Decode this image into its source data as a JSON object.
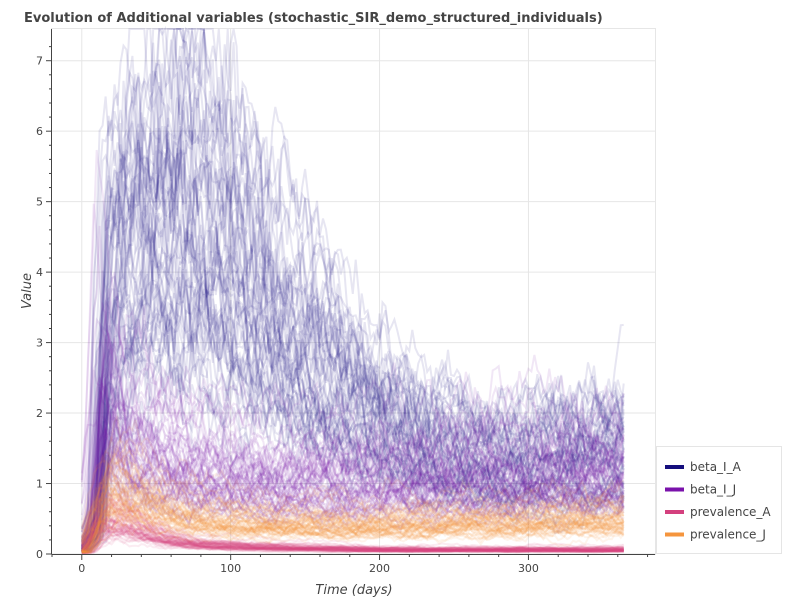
{
  "chart_data": {
    "type": "line",
    "title": "Evolution of Additional variables (stochastic_SIR_demo_structured_individuals)",
    "xlabel": "Time (days)",
    "ylabel": "Value",
    "xlim": [
      -20,
      385
    ],
    "ylim": [
      0,
      7.45
    ],
    "x_ticks": [
      0,
      100,
      200,
      300
    ],
    "x_tick_labels": [
      "0",
      "100",
      "200",
      "300"
    ],
    "y_ticks": [
      0,
      1,
      2,
      3,
      4,
      5,
      6,
      7
    ],
    "y_tick_labels": [
      "0",
      "1",
      "2",
      "3",
      "4",
      "5",
      "6",
      "7"
    ],
    "grid": true,
    "legend_position": "bottom-right",
    "series": [
      {
        "name": "beta_I_A",
        "color": "#150e7d",
        "runs": 60,
        "x": [
          0,
          10,
          14,
          20,
          30,
          40,
          55,
          65,
          75,
          90,
          110,
          130,
          150,
          175,
          200,
          225,
          250,
          275,
          300,
          325,
          350,
          365
        ],
        "values": [
          0.05,
          0.4,
          2.6,
          3.8,
          4.1,
          4.3,
          4.5,
          4.6,
          4.5,
          4.1,
          3.6,
          3.1,
          2.7,
          2.3,
          1.9,
          1.6,
          1.4,
          1.3,
          1.3,
          1.35,
          1.4,
          1.4
        ]
      },
      {
        "name": "beta_I_J",
        "color": "#7a12ab",
        "runs": 60,
        "x": [
          0,
          8,
          12,
          16,
          20,
          30,
          40,
          55,
          70,
          90,
          110,
          130,
          150,
          175,
          200,
          225,
          250,
          275,
          300,
          325,
          350,
          365
        ],
        "values": [
          0.05,
          0.6,
          1.6,
          2.3,
          2.0,
          1.55,
          1.4,
          1.3,
          1.2,
          1.1,
          1.05,
          1.0,
          1.0,
          1.0,
          1.0,
          1.0,
          1.05,
          1.05,
          1.05,
          1.1,
          1.1,
          1.1
        ]
      },
      {
        "name": "prevalence_A",
        "color": "#d4407e",
        "runs": 60,
        "x": [
          0,
          5,
          10,
          15,
          20,
          30,
          40,
          55,
          70,
          90,
          110,
          130,
          150,
          175,
          200,
          225,
          250,
          275,
          300,
          325,
          350,
          365
        ],
        "values": [
          0.02,
          0.12,
          0.3,
          0.45,
          0.5,
          0.42,
          0.32,
          0.22,
          0.16,
          0.12,
          0.1,
          0.09,
          0.08,
          0.07,
          0.06,
          0.06,
          0.06,
          0.06,
          0.06,
          0.06,
          0.06,
          0.06
        ]
      },
      {
        "name": "prevalence_J",
        "color": "#f5953d",
        "runs": 60,
        "x": [
          0,
          5,
          10,
          15,
          20,
          30,
          40,
          55,
          70,
          90,
          110,
          130,
          150,
          175,
          200,
          225,
          250,
          275,
          300,
          325,
          350,
          365
        ],
        "values": [
          0.03,
          0.2,
          0.55,
          0.78,
          0.85,
          0.8,
          0.7,
          0.58,
          0.5,
          0.45,
          0.42,
          0.4,
          0.4,
          0.4,
          0.4,
          0.4,
          0.42,
          0.42,
          0.43,
          0.44,
          0.45,
          0.45
        ]
      }
    ]
  }
}
